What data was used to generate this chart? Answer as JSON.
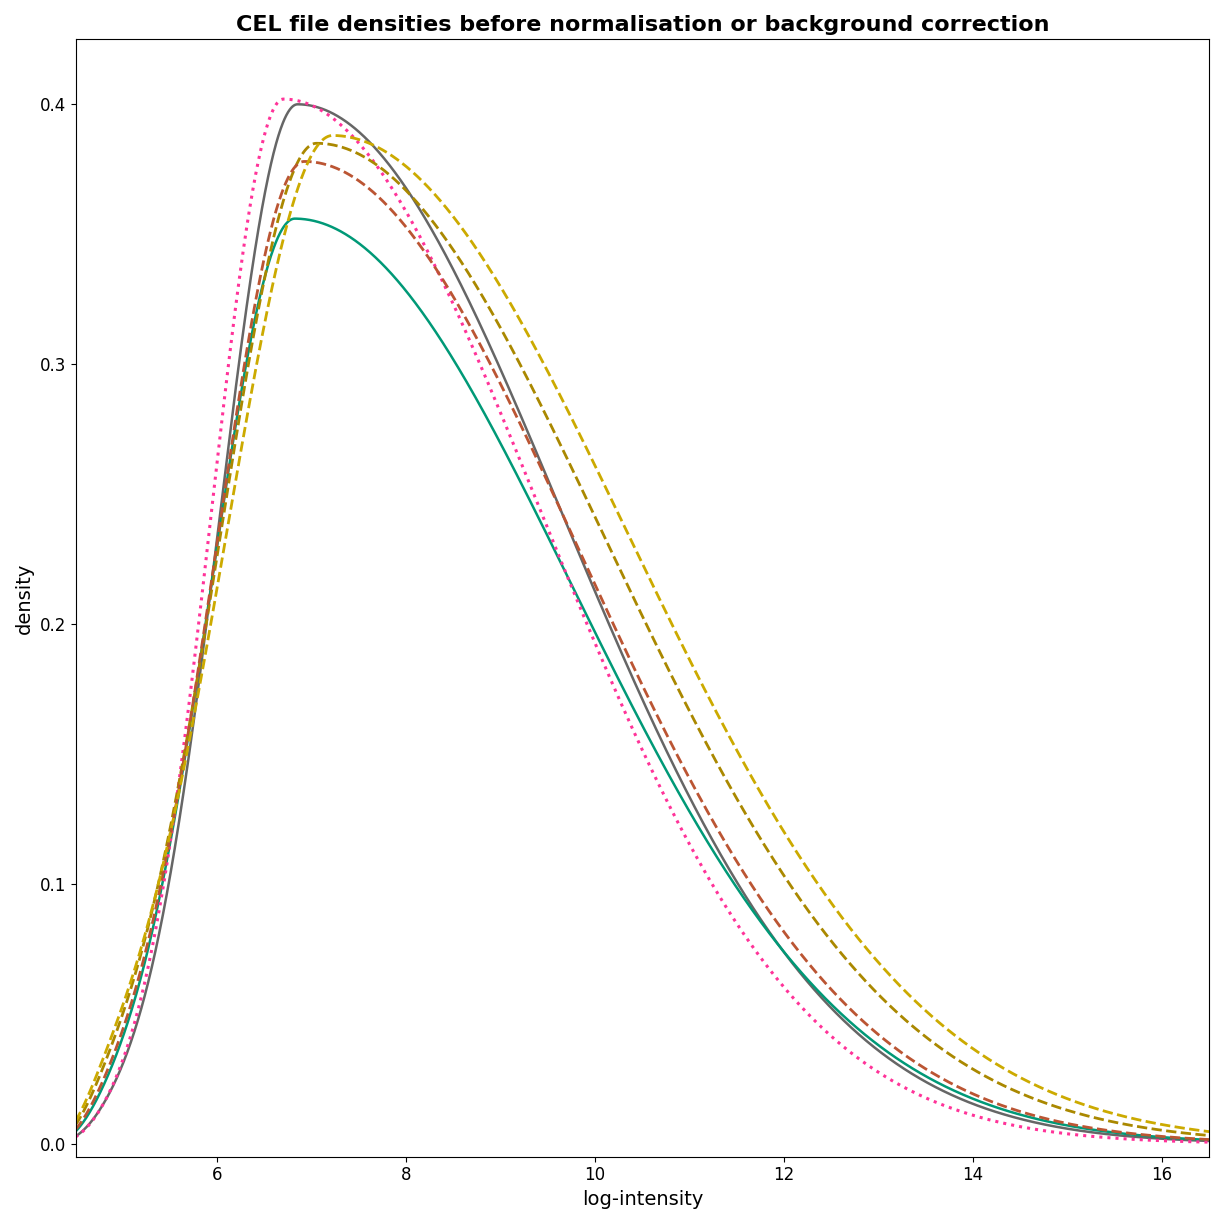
{
  "title": "CEL file densities before normalisation or background correction",
  "xlabel": "log-intensity",
  "ylabel": "density",
  "xlim": [
    4.5,
    16.5
  ],
  "ylim": [
    -0.005,
    0.425
  ],
  "xticks": [
    6,
    8,
    10,
    12,
    14,
    16
  ],
  "yticks": [
    0.0,
    0.1,
    0.2,
    0.3,
    0.4
  ],
  "yticklabels": [
    "0.0",
    "0.1",
    "0.2",
    "0.3",
    "0.4"
  ],
  "background_color": "#ffffff",
  "title_fontsize": 16,
  "axis_fontsize": 14,
  "tick_fontsize": 12,
  "curves": [
    {
      "name": "gray_solid",
      "color": "#666666",
      "linestyle": "-",
      "linewidth": 1.8,
      "mu": 6.85,
      "sigma_l": 0.82,
      "sigma_r": 2.8,
      "peak": 0.4
    },
    {
      "name": "teal_solid",
      "color": "#009977",
      "linestyle": "-",
      "linewidth": 1.8,
      "mu": 6.82,
      "sigma_l": 0.88,
      "sigma_r": 2.92,
      "peak": 0.356
    },
    {
      "name": "magenta_dotted",
      "color": "#FF3399",
      "linestyle": ":",
      "linewidth": 2.2,
      "mu": 6.7,
      "sigma_l": 0.76,
      "sigma_r": 2.72,
      "peak": 0.402
    },
    {
      "name": "olive_dashed",
      "color": "#AA8800",
      "linestyle": "--",
      "linewidth": 2.0,
      "mu": 7.05,
      "sigma_l": 1.02,
      "sigma_r": 3.05,
      "peak": 0.385
    },
    {
      "name": "brown_dashed",
      "color": "#BB5533",
      "linestyle": "--",
      "linewidth": 2.0,
      "mu": 6.92,
      "sigma_l": 0.93,
      "sigma_r": 2.9,
      "peak": 0.378
    },
    {
      "name": "golden_dashed",
      "color": "#CCAA00",
      "linestyle": "--",
      "linewidth": 2.0,
      "mu": 7.22,
      "sigma_l": 1.12,
      "sigma_r": 3.12,
      "peak": 0.388
    }
  ]
}
